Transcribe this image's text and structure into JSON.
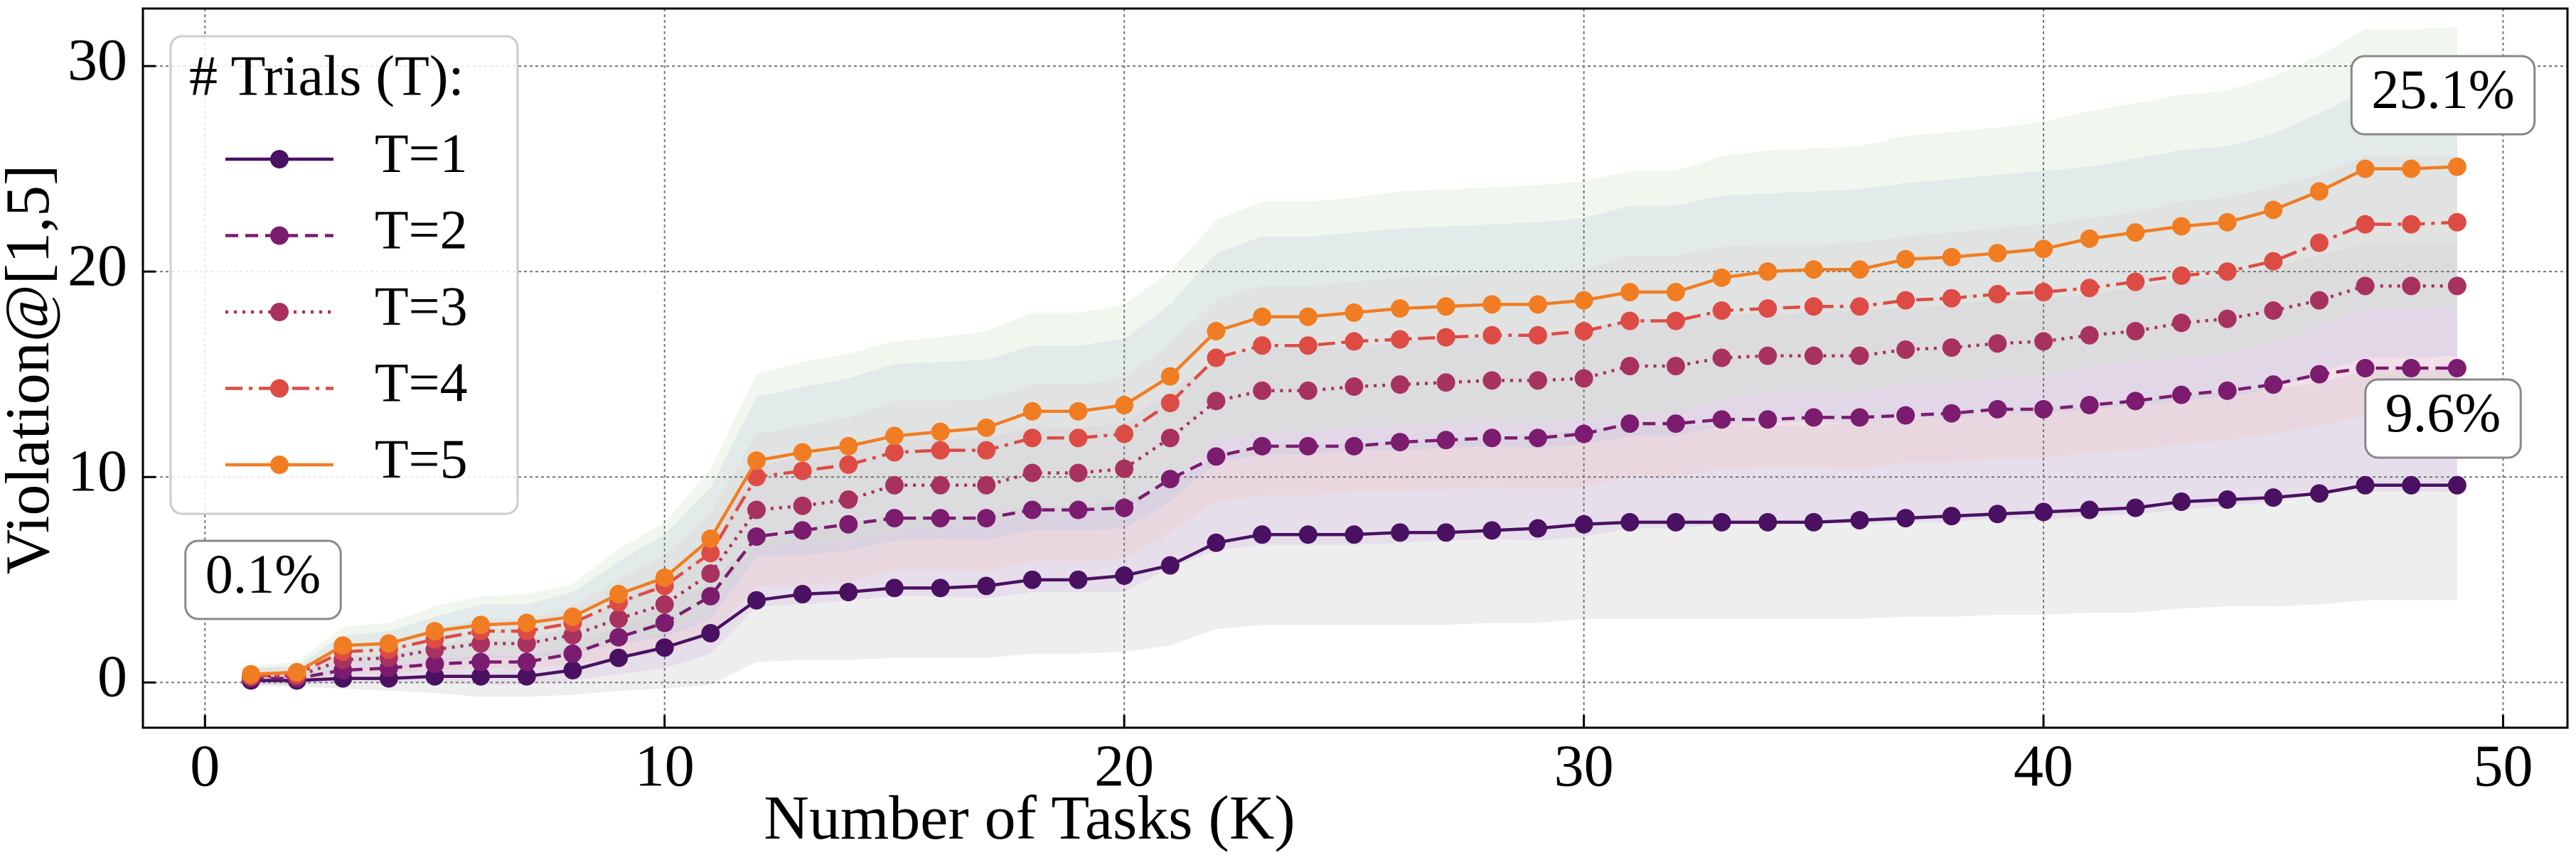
{
  "chart_data": {
    "type": "line",
    "xlabel": "Number of Tasks (K)",
    "ylabel": "Violation@[1,5]",
    "legend_title": "# Trials (T):",
    "legend": "upper left",
    "grid": true,
    "xlim": [
      -1.35,
      51.4
    ],
    "ylim": [
      -2.2,
      32.8
    ],
    "xticks": [
      0,
      10,
      20,
      30,
      40,
      50
    ],
    "yticks": [
      0,
      10,
      20,
      30
    ],
    "annotations": [
      "0.1%",
      "25.1%",
      "9.6%"
    ],
    "x": [
      1,
      2,
      3,
      4,
      5,
      6,
      7,
      8,
      9,
      10,
      11,
      12,
      13,
      14,
      15,
      16,
      17,
      18,
      19,
      20,
      21,
      22,
      23,
      24,
      25,
      26,
      27,
      28,
      29,
      30,
      31,
      32,
      33,
      34,
      35,
      36,
      37,
      38,
      39,
      40,
      41,
      42,
      43,
      44,
      45,
      46,
      47,
      48,
      49
    ],
    "series": [
      {
        "name": "T=1",
        "color": "#4a1162",
        "linestyle": "solid",
        "band_color": "#c8c8c8",
        "values": [
          0.1,
          0.1,
          0.2,
          0.2,
          0.3,
          0.3,
          0.3,
          0.6,
          1.2,
          1.7,
          2.4,
          4.0,
          4.3,
          4.4,
          4.6,
          4.6,
          4.7,
          5.0,
          5.0,
          5.2,
          5.7,
          6.8,
          7.2,
          7.2,
          7.2,
          7.3,
          7.3,
          7.4,
          7.5,
          7.7,
          7.8,
          7.8,
          7.8,
          7.8,
          7.8,
          7.9,
          8.0,
          8.1,
          8.2,
          8.3,
          8.4,
          8.5,
          8.8,
          8.9,
          9.0,
          9.2,
          9.6,
          9.6,
          9.6
        ],
        "error": [
          0.3,
          0.3,
          0.5,
          0.6,
          0.8,
          1.0,
          1.0,
          1.2,
          1.6,
          2.0,
          2.5,
          3.0,
          3.2,
          3.3,
          3.4,
          3.4,
          3.5,
          3.6,
          3.6,
          3.7,
          3.9,
          4.2,
          4.4,
          4.4,
          4.4,
          4.5,
          4.5,
          4.5,
          4.6,
          4.6,
          4.7,
          4.7,
          4.7,
          4.7,
          4.7,
          4.8,
          4.8,
          4.9,
          4.9,
          5.0,
          5.0,
          5.1,
          5.2,
          5.2,
          5.3,
          5.4,
          5.6,
          5.6,
          5.6
        ]
      },
      {
        "name": "T=2",
        "color": "#7b1c6f",
        "linestyle": "dashed",
        "band_color": "#d4b8e6",
        "values": [
          0.2,
          0.2,
          0.6,
          0.7,
          0.9,
          1.0,
          1.0,
          1.4,
          2.2,
          2.9,
          4.2,
          7.1,
          7.4,
          7.7,
          8.0,
          8.0,
          8.0,
          8.4,
          8.4,
          8.5,
          9.9,
          11.0,
          11.5,
          11.5,
          11.5,
          11.7,
          11.8,
          11.9,
          11.9,
          12.1,
          12.6,
          12.6,
          12.8,
          12.8,
          12.9,
          12.9,
          13.0,
          13.1,
          13.3,
          13.3,
          13.5,
          13.7,
          14.0,
          14.2,
          14.5,
          15.0,
          15.3,
          15.3,
          15.3
        ],
        "error": [
          0.3,
          0.3,
          0.6,
          0.7,
          0.9,
          1.1,
          1.1,
          1.3,
          1.8,
          2.2,
          2.8,
          3.4,
          3.6,
          3.7,
          3.8,
          3.8,
          3.9,
          4.0,
          4.0,
          4.1,
          4.3,
          4.6,
          4.8,
          4.8,
          4.8,
          4.9,
          4.9,
          4.9,
          5.0,
          5.0,
          5.1,
          5.1,
          5.1,
          5.1,
          5.1,
          5.2,
          5.2,
          5.3,
          5.3,
          5.4,
          5.4,
          5.5,
          5.6,
          5.6,
          5.7,
          5.8,
          6.0,
          6.0,
          6.0
        ]
      },
      {
        "name": "T=3",
        "color": "#a8325f",
        "linestyle": "dotted",
        "band_color": "#f2c6c6",
        "values": [
          0.3,
          0.3,
          1.1,
          1.2,
          1.6,
          1.9,
          1.9,
          2.3,
          3.1,
          3.8,
          5.3,
          8.4,
          8.6,
          8.9,
          9.6,
          9.6,
          9.6,
          10.2,
          10.2,
          10.4,
          11.9,
          13.7,
          14.2,
          14.2,
          14.4,
          14.5,
          14.6,
          14.7,
          14.7,
          14.8,
          15.4,
          15.4,
          15.8,
          15.9,
          15.9,
          15.9,
          16.2,
          16.3,
          16.5,
          16.6,
          16.9,
          17.1,
          17.5,
          17.7,
          18.1,
          18.6,
          19.3,
          19.3,
          19.3
        ],
        "error": [
          0.4,
          0.4,
          0.7,
          0.8,
          1.0,
          1.2,
          1.2,
          1.4,
          1.9,
          2.4,
          3.0,
          3.7,
          3.9,
          4.0,
          4.1,
          4.1,
          4.2,
          4.3,
          4.3,
          4.4,
          4.6,
          4.9,
          5.1,
          5.1,
          5.1,
          5.2,
          5.2,
          5.2,
          5.3,
          5.3,
          5.4,
          5.4,
          5.4,
          5.4,
          5.4,
          5.5,
          5.5,
          5.6,
          5.6,
          5.7,
          5.7,
          5.8,
          5.9,
          5.9,
          6.0,
          6.1,
          6.3,
          6.3,
          6.3
        ]
      },
      {
        "name": "T=4",
        "color": "#dc4c45",
        "linestyle": "dashdot",
        "band_color": "#b9c6e4",
        "values": [
          0.3,
          0.4,
          1.5,
          1.6,
          2.1,
          2.5,
          2.5,
          2.9,
          3.9,
          4.7,
          6.3,
          10.0,
          10.3,
          10.6,
          11.2,
          11.3,
          11.3,
          11.9,
          11.9,
          12.1,
          13.6,
          15.8,
          16.4,
          16.4,
          16.6,
          16.7,
          16.8,
          16.9,
          16.9,
          17.1,
          17.6,
          17.6,
          18.1,
          18.2,
          18.3,
          18.3,
          18.6,
          18.7,
          18.9,
          19.0,
          19.2,
          19.5,
          19.8,
          20.0,
          20.5,
          21.4,
          22.3,
          22.3,
          22.4
        ],
        "error": [
          0.4,
          0.4,
          0.8,
          0.9,
          1.1,
          1.3,
          1.3,
          1.5,
          2.0,
          2.5,
          3.2,
          3.9,
          4.1,
          4.2,
          4.3,
          4.3,
          4.4,
          4.5,
          4.5,
          4.6,
          4.8,
          5.1,
          5.3,
          5.3,
          5.3,
          5.4,
          5.4,
          5.4,
          5.5,
          5.5,
          5.6,
          5.6,
          5.6,
          5.6,
          5.6,
          5.7,
          5.7,
          5.8,
          5.8,
          5.9,
          5.9,
          6.0,
          6.1,
          6.1,
          6.2,
          6.3,
          6.5,
          6.5,
          6.5
        ]
      },
      {
        "name": "T=5",
        "color": "#f07d22",
        "linestyle": "solid",
        "band_color": "#cfe3c9",
        "values": [
          0.4,
          0.5,
          1.8,
          1.9,
          2.5,
          2.8,
          2.9,
          3.2,
          4.3,
          5.1,
          7.0,
          10.8,
          11.2,
          11.5,
          12.0,
          12.2,
          12.4,
          13.2,
          13.2,
          13.5,
          14.9,
          17.1,
          17.8,
          17.8,
          18.0,
          18.2,
          18.3,
          18.4,
          18.4,
          18.6,
          19.0,
          19.0,
          19.7,
          20.0,
          20.1,
          20.1,
          20.6,
          20.7,
          20.9,
          21.1,
          21.6,
          21.9,
          22.2,
          22.4,
          23.0,
          23.9,
          25.0,
          25.0,
          25.1
        ],
        "error": [
          0.4,
          0.5,
          0.9,
          1.0,
          1.2,
          1.4,
          1.4,
          1.6,
          2.2,
          2.7,
          3.4,
          4.2,
          4.4,
          4.5,
          4.6,
          4.6,
          4.7,
          4.8,
          4.8,
          4.9,
          5.1,
          5.4,
          5.6,
          5.6,
          5.6,
          5.7,
          5.7,
          5.7,
          5.8,
          5.8,
          5.9,
          5.9,
          5.9,
          5.9,
          5.9,
          6.0,
          6.0,
          6.1,
          6.1,
          6.2,
          6.2,
          6.3,
          6.4,
          6.4,
          6.5,
          6.6,
          6.8,
          6.8,
          6.8
        ]
      }
    ]
  }
}
